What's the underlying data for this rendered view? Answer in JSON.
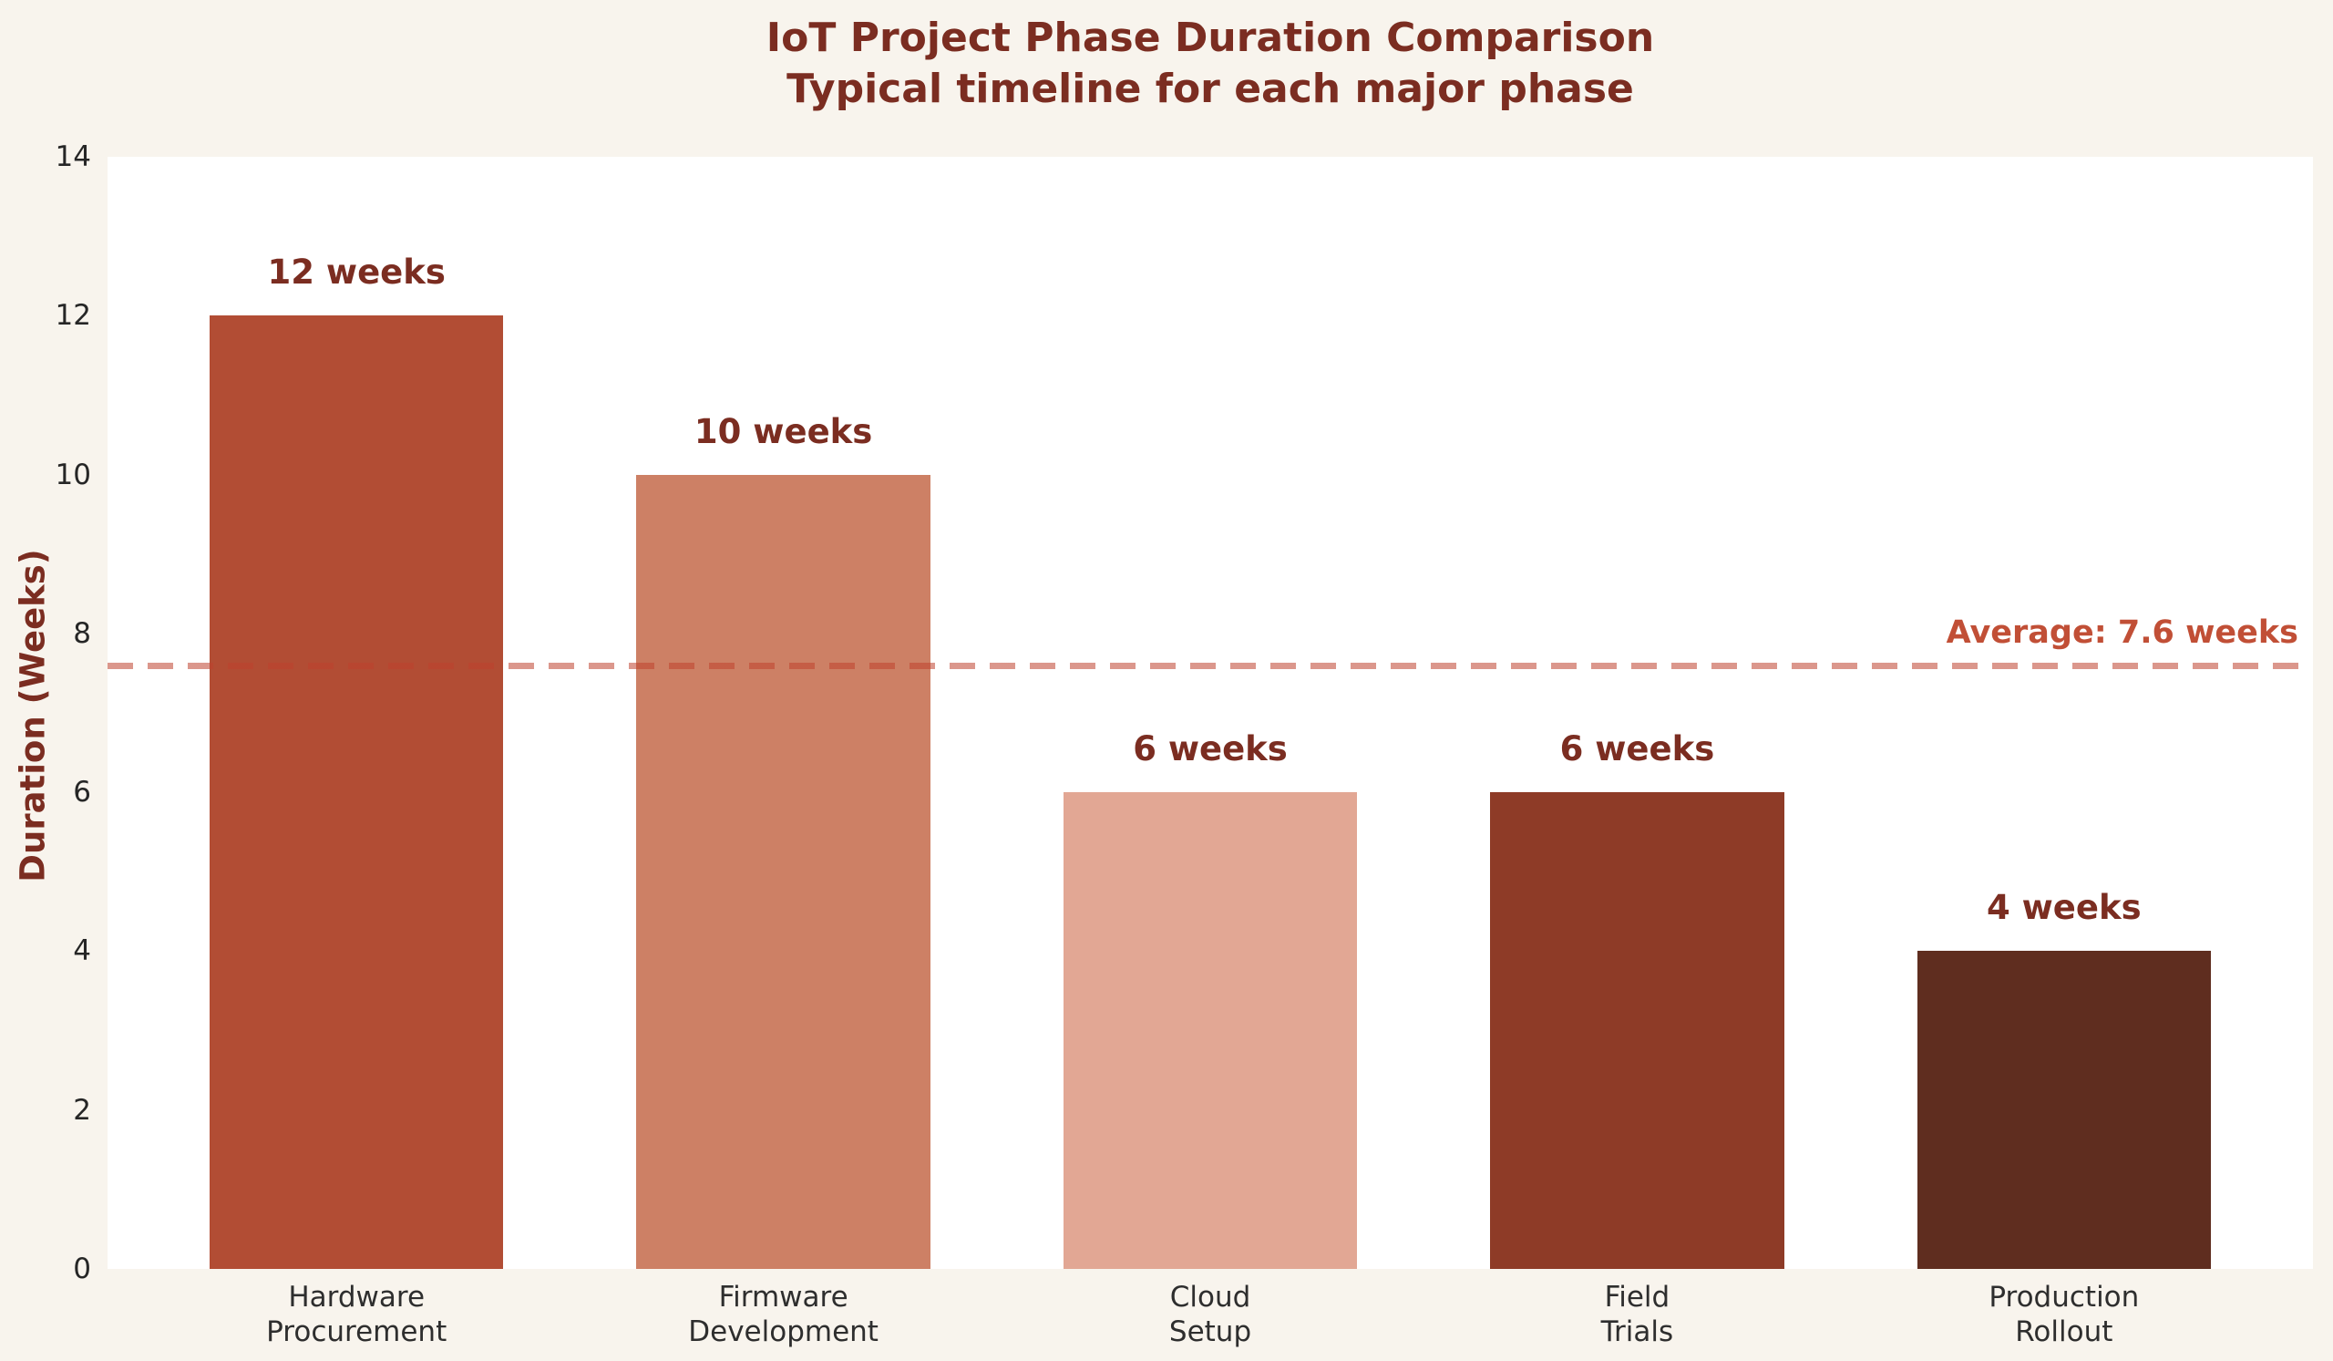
{
  "chart_data": {
    "type": "bar",
    "title": "IoT Project Phase Duration Comparison",
    "subtitle": "Typical timeline for each major phase",
    "ylabel": "Duration (Weeks)",
    "xlabel": "",
    "categories": [
      "Hardware\nProcurement",
      "Firmware\nDevelopment",
      "Cloud\nSetup",
      "Field\nTrials",
      "Production\nRollout"
    ],
    "values": [
      12,
      10,
      6,
      6,
      4
    ],
    "bar_labels": [
      "12 weeks",
      "10 weeks",
      "6 weeks",
      "6 weeks",
      "4 weeks"
    ],
    "bar_colors": [
      "#b24d34",
      "#cd8065",
      "#e2a794",
      "#8e3b27",
      "#5f2d1f"
    ],
    "ylim": [
      0,
      14
    ],
    "yticks": [
      0,
      2,
      4,
      6,
      8,
      10,
      12,
      14
    ],
    "grid": false,
    "legend": null,
    "average_line": {
      "value": 7.6,
      "label": "Average: 7.6 weeks",
      "label_color": "#c14f36",
      "line_rgba": "rgba(190,65,45,0.55)",
      "style": "dashed"
    },
    "colors": {
      "figure_background": "#f8f4ed",
      "plot_background": "#ffffff",
      "title_color": "#7b2d21",
      "tick_color": "#262626",
      "xlabel_color": "#2e2e2e"
    }
  }
}
